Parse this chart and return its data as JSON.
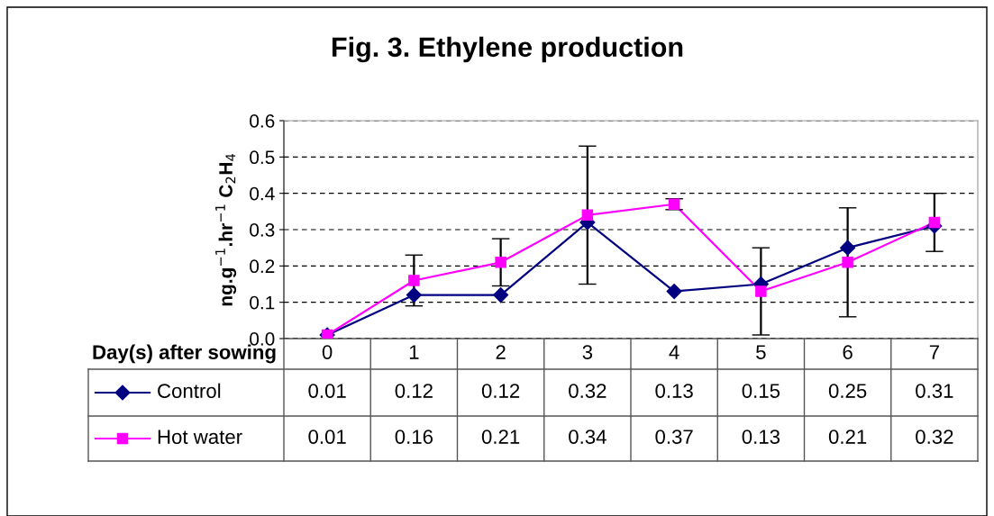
{
  "chart_data": {
    "type": "line",
    "title": "Fig. 3. Ethylene production",
    "xlabel": "Day(s) after sowing",
    "ylabel": "ng.g$^{−1}$.hr$^{−1}$ C$_{2}$H$_{4}$",
    "categories": [
      "0",
      "1",
      "2",
      "3",
      "4",
      "5",
      "6",
      "7"
    ],
    "series": [
      {
        "name": "Control",
        "color": "#000080",
        "marker": "diamond",
        "values": [
          0.01,
          0.12,
          0.12,
          0.32,
          0.13,
          0.15,
          0.25,
          0.31
        ]
      },
      {
        "name": "Hot water",
        "color": "#ff00ff",
        "marker": "square",
        "values": [
          0.01,
          0.16,
          0.21,
          0.34,
          0.37,
          0.13,
          0.21,
          0.32
        ],
        "errors": [
          null,
          0.07,
          0.065,
          0.19,
          0.015,
          0.12,
          0.15,
          0.08
        ]
      }
    ],
    "ylim": [
      0,
      0.6
    ],
    "yticks": [
      {
        "value": 0,
        "label": "0.0"
      },
      0.1,
      0.2,
      0.3,
      0.4,
      0.5,
      0.6
    ],
    "grid": "y",
    "line_style": "solid",
    "legend": "bottom",
    "data_labels": true
  }
}
